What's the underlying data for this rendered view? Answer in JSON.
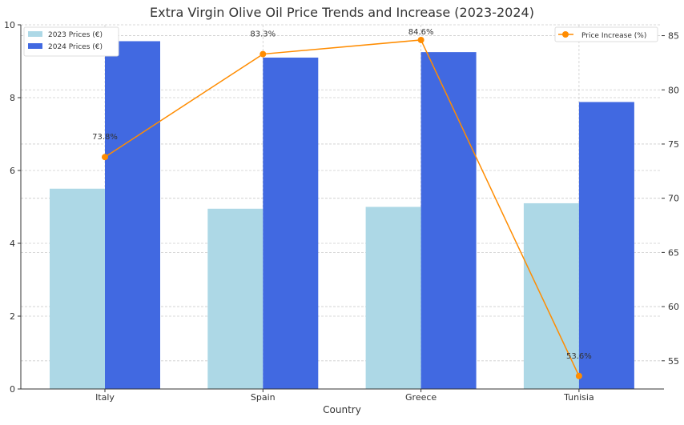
{
  "chart_data": {
    "type": "bar",
    "title": "Extra Virgin Olive Oil Price Trends and Increase (2023-2024)",
    "xlabel": "Country",
    "ylabel": "",
    "y2label": "",
    "categories": [
      "Italy",
      "Spain",
      "Greece",
      "Tunisia"
    ],
    "ylim": [
      0,
      10
    ],
    "yticks": [
      0,
      2,
      4,
      6,
      8,
      10
    ],
    "y2lim": [
      52.4,
      86.0
    ],
    "y2ticks": [
      55,
      60,
      65,
      70,
      75,
      80,
      85
    ],
    "grid": true,
    "series": [
      {
        "name": "2023 Prices (€)",
        "type": "bar",
        "axis": "left",
        "color": "#add8e6",
        "values": [
          5.5,
          4.95,
          5.0,
          5.1
        ]
      },
      {
        "name": "2024 Prices (€)",
        "type": "bar",
        "axis": "left",
        "color": "#4169e1",
        "values": [
          9.55,
          9.1,
          9.25,
          7.88
        ]
      },
      {
        "name": "Price Increase (%)",
        "type": "line",
        "axis": "right",
        "color": "#ff8c00",
        "values": [
          73.8,
          83.3,
          84.6,
          53.6
        ],
        "labels": [
          "73.8%",
          "83.3%",
          "84.6%",
          "53.6%"
        ]
      }
    ],
    "legend_left": "top-left",
    "legend_right": "top-right"
  }
}
